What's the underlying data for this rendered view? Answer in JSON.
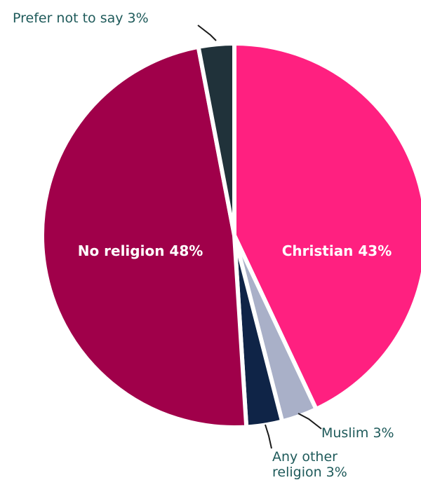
{
  "chart_data": {
    "type": "pie",
    "slices": [
      {
        "label": "Christian",
        "value": 43,
        "display": "Christian 43%",
        "color": "#ff2080",
        "placement": "inside"
      },
      {
        "label": "Muslim",
        "value": 3,
        "display": "Muslim 3%",
        "color": "#a9b0c8",
        "placement": "outside"
      },
      {
        "label": "Any other religion",
        "value": 3,
        "display_lines": [
          "Any other",
          "religion 3%"
        ],
        "color": "#0f2447",
        "placement": "outside"
      },
      {
        "label": "No religion",
        "value": 48,
        "display": "No religion 48%",
        "color": "#a0004a",
        "placement": "inside"
      },
      {
        "label": "Prefer not to say",
        "value": 3,
        "display": "Prefer not to say 3%",
        "color": "#20323a",
        "placement": "outside"
      }
    ]
  }
}
